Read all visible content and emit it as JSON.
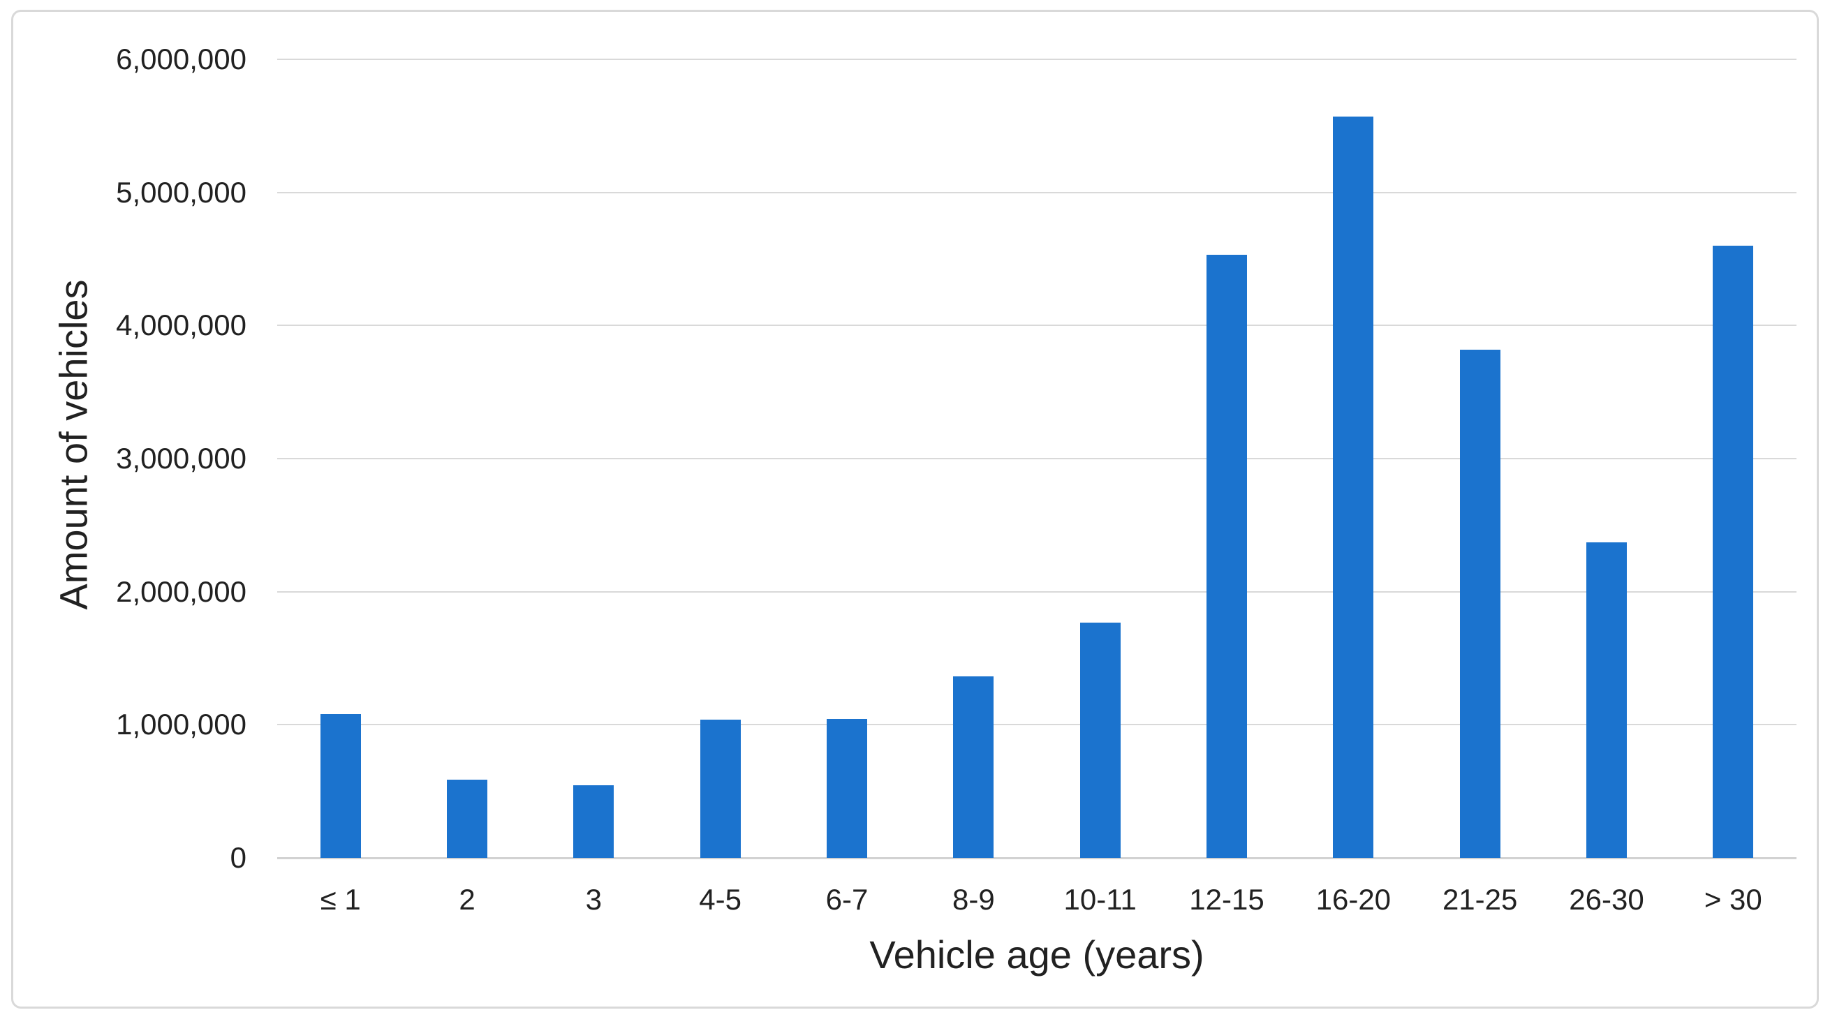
{
  "chart_data": {
    "type": "bar",
    "title": "",
    "categories": [
      "≤ 1",
      "2",
      "3",
      "4-5",
      "6-7",
      "8-9",
      "10-11",
      "12-15",
      "16-20",
      "21-25",
      "26-30",
      "> 30"
    ],
    "values": [
      1080000,
      590000,
      545000,
      1040000,
      1045000,
      1365000,
      1770000,
      4530000,
      5570000,
      3820000,
      2370000,
      4600000
    ],
    "xlabel": "Vehicle age (years)",
    "ylabel": "Amount of vehicles",
    "ylim": [
      0,
      6000000
    ],
    "ytick_values": [
      0,
      1000000,
      2000000,
      3000000,
      4000000,
      5000000,
      6000000
    ],
    "ytick_labels": [
      "0",
      "1,000,000",
      "2,000,000",
      "3,000,000",
      "4,000,000",
      "5,000,000",
      "6,000,000"
    ],
    "grid": true,
    "legend": false,
    "series_count": 1
  },
  "colors": {
    "bar": "#1B73CE",
    "gridline": "#D9D9D9",
    "axis_line": "#D2D2D2",
    "text": "#212121",
    "frame_border": "#D9D9D9",
    "background": "#FFFFFF"
  }
}
